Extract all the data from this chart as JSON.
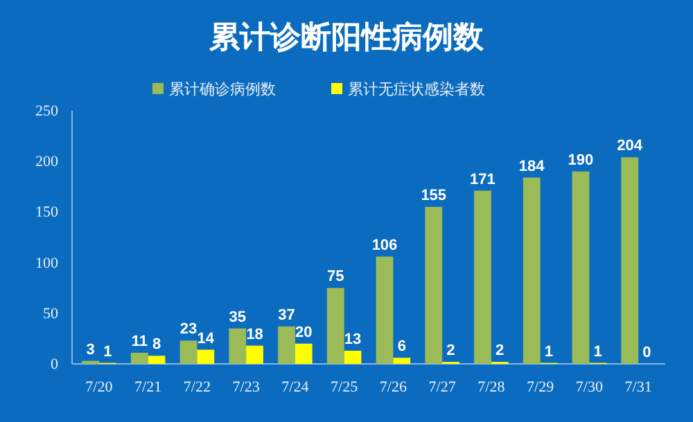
{
  "chart_data": {
    "type": "bar",
    "title": "累计诊断阳性病例数",
    "categories": [
      "7/20",
      "7/21",
      "7/22",
      "7/23",
      "7/24",
      "7/25",
      "7/26",
      "7/27",
      "7/28",
      "7/29",
      "7/30",
      "7/31"
    ],
    "series": [
      {
        "name": "累计确诊病例数",
        "color": "#9bbb59",
        "values": [
          3,
          11,
          23,
          35,
          37,
          75,
          106,
          155,
          171,
          184,
          190,
          204
        ]
      },
      {
        "name": "累计无症状感染者数",
        "color": "#ffff00",
        "values": [
          1,
          8,
          14,
          18,
          20,
          13,
          6,
          2,
          2,
          1,
          1,
          0
        ]
      }
    ],
    "ylim": [
      0,
      250
    ],
    "yticks": [
      0,
      50,
      100,
      150,
      200,
      250
    ],
    "grid": false,
    "legend": "top",
    "data_labels": true
  }
}
